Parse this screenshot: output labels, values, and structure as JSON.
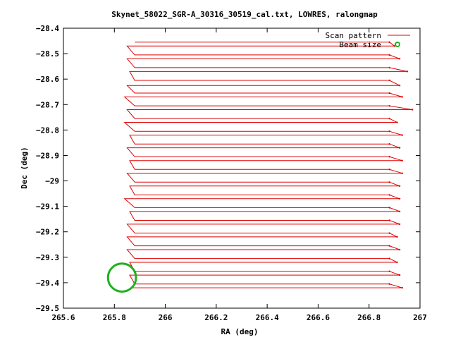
{
  "chart_data": {
    "type": "line",
    "title": "Skynet_58022_SGR-A_30316_30519_cal.txt, LOWRES, ralongmap",
    "xlabel": "RA (deg)",
    "ylabel": "Dec (deg)",
    "xlim": [
      265.6,
      267.0
    ],
    "ylim": [
      -29.5,
      -28.4
    ],
    "x_ticks": [
      "265.6",
      "265.8",
      "266",
      "266.2",
      "266.4",
      "266.6",
      "266.8",
      "267"
    ],
    "y_ticks": [
      "-28.4",
      "-28.5",
      "-28.6",
      "-28.7",
      "-28.8",
      "-28.9",
      "-29",
      "-29.1",
      "-29.2",
      "-29.3",
      "-29.4",
      "-29.5"
    ],
    "legend_position": "top-right",
    "series": [
      {
        "name": "Scan pattern",
        "color": "#e00000",
        "rows": [
          {
            "dec": -28.455,
            "x_start": 265.88,
            "x_end": 266.88
          },
          {
            "dec": -28.47,
            "x_start": 265.85,
            "x_end": 266.9
          },
          {
            "dec": -28.505,
            "x_start": 265.88,
            "x_end": 266.88
          },
          {
            "dec": -28.52,
            "x_start": 265.85,
            "x_end": 266.92
          },
          {
            "dec": -28.555,
            "x_start": 265.88,
            "x_end": 266.88
          },
          {
            "dec": -28.57,
            "x_start": 265.86,
            "x_end": 266.95
          },
          {
            "dec": -28.605,
            "x_start": 265.88,
            "x_end": 266.88
          },
          {
            "dec": -28.625,
            "x_start": 265.85,
            "x_end": 266.92
          },
          {
            "dec": -28.655,
            "x_start": 265.88,
            "x_end": 266.88
          },
          {
            "dec": -28.67,
            "x_start": 265.84,
            "x_end": 266.93
          },
          {
            "dec": -28.705,
            "x_start": 265.88,
            "x_end": 266.88
          },
          {
            "dec": -28.72,
            "x_start": 265.85,
            "x_end": 266.97
          },
          {
            "dec": -28.755,
            "x_start": 265.88,
            "x_end": 266.88
          },
          {
            "dec": -28.77,
            "x_start": 265.84,
            "x_end": 266.91
          },
          {
            "dec": -28.805,
            "x_start": 265.88,
            "x_end": 266.88
          },
          {
            "dec": -28.82,
            "x_start": 265.86,
            "x_end": 266.93
          },
          {
            "dec": -28.855,
            "x_start": 265.88,
            "x_end": 266.88
          },
          {
            "dec": -28.87,
            "x_start": 265.85,
            "x_end": 266.92
          },
          {
            "dec": -28.905,
            "x_start": 265.88,
            "x_end": 266.88
          },
          {
            "dec": -28.92,
            "x_start": 265.86,
            "x_end": 266.93
          },
          {
            "dec": -28.955,
            "x_start": 265.88,
            "x_end": 266.88
          },
          {
            "dec": -28.97,
            "x_start": 265.85,
            "x_end": 266.93
          },
          {
            "dec": -29.005,
            "x_start": 265.88,
            "x_end": 266.88
          },
          {
            "dec": -29.02,
            "x_start": 265.86,
            "x_end": 266.92
          },
          {
            "dec": -29.055,
            "x_start": 265.88,
            "x_end": 266.88
          },
          {
            "dec": -29.07,
            "x_start": 265.84,
            "x_end": 266.92
          },
          {
            "dec": -29.105,
            "x_start": 265.88,
            "x_end": 266.88
          },
          {
            "dec": -29.12,
            "x_start": 265.86,
            "x_end": 266.92
          },
          {
            "dec": -29.155,
            "x_start": 265.88,
            "x_end": 266.88
          },
          {
            "dec": -29.17,
            "x_start": 265.85,
            "x_end": 266.92
          },
          {
            "dec": -29.205,
            "x_start": 265.88,
            "x_end": 266.88
          },
          {
            "dec": -29.22,
            "x_start": 265.85,
            "x_end": 266.91
          },
          {
            "dec": -29.255,
            "x_start": 265.88,
            "x_end": 266.88
          },
          {
            "dec": -29.27,
            "x_start": 265.85,
            "x_end": 266.92
          },
          {
            "dec": -29.305,
            "x_start": 265.88,
            "x_end": 266.88
          },
          {
            "dec": -29.32,
            "x_start": 265.86,
            "x_end": 266.91
          },
          {
            "dec": -29.355,
            "x_start": 265.88,
            "x_end": 266.88
          },
          {
            "dec": -29.37,
            "x_start": 265.86,
            "x_end": 266.92
          },
          {
            "dec": -29.405,
            "x_start": 265.88,
            "x_end": 266.88
          },
          {
            "dec": -29.42,
            "x_start": 265.87,
            "x_end": 266.93
          }
        ]
      },
      {
        "name": "Beam size",
        "color": "#20b020",
        "marker": "circle",
        "center": [
          265.83,
          -29.38
        ],
        "radius_deg": 0.055
      }
    ]
  }
}
